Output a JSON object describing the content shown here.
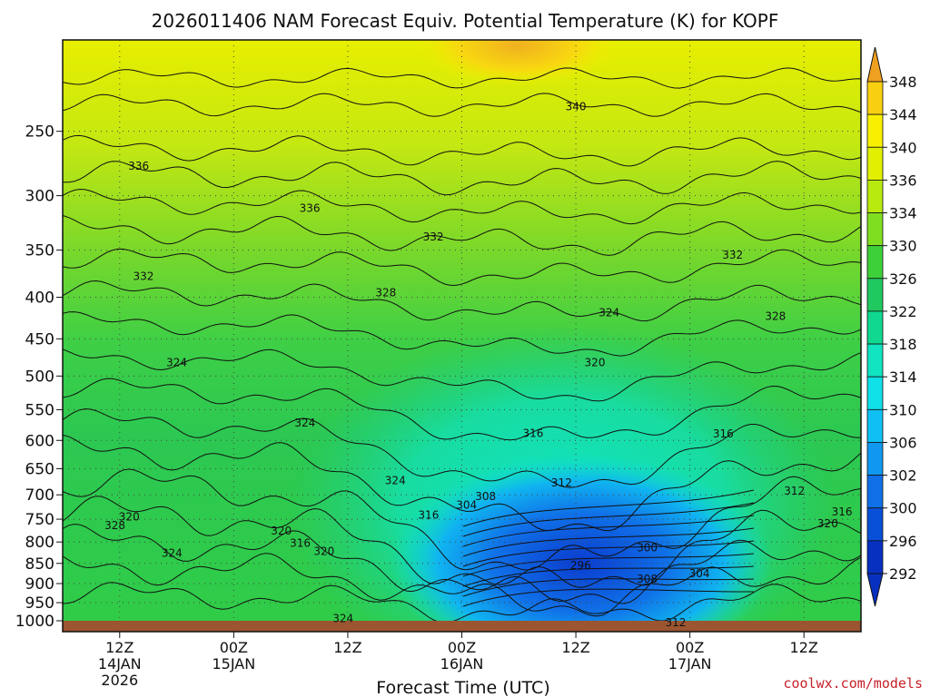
{
  "chart_data": {
    "type": "contour",
    "title": "2026011406 NAM Forecast Equiv. Potential Temperature (K) for KOPF",
    "xlabel": "Forecast Time (UTC)",
    "ylabel": "",
    "y_axis": "pressure (hPa), inverted",
    "ylim": [
      1000,
      200
    ],
    "pressure_levels": [
      250,
      300,
      350,
      400,
      450,
      500,
      550,
      600,
      650,
      700,
      750,
      800,
      850,
      900,
      950,
      1000
    ],
    "pressure_tick_labels": [
      "250",
      "300",
      "350",
      "400",
      "450",
      "500",
      "550",
      "600",
      "650",
      "700",
      "750",
      "800",
      "850",
      "900",
      "950",
      "1000"
    ],
    "time_ticks": [
      {
        "hour": 12,
        "line1": "12Z",
        "line2": "14JAN",
        "line3": "2026"
      },
      {
        "hour": 24,
        "line1": "00Z",
        "line2": "15JAN",
        "line3": ""
      },
      {
        "hour": 36,
        "line1": "12Z",
        "line2": "",
        "line3": ""
      },
      {
        "hour": 48,
        "line1": "00Z",
        "line2": "16JAN",
        "line3": ""
      },
      {
        "hour": 60,
        "line1": "12Z",
        "line2": "",
        "line3": ""
      },
      {
        "hour": 72,
        "line1": "00Z",
        "line2": "17JAN",
        "line3": ""
      },
      {
        "hour": 84,
        "line1": "12Z",
        "line2": "",
        "line3": ""
      }
    ],
    "xlim_hours": [
      6,
      90
    ],
    "colorbar": {
      "levels": [
        348,
        344,
        340,
        336,
        334,
        330,
        326,
        322,
        318,
        314,
        310,
        306,
        302,
        300,
        296,
        292
      ],
      "colors": [
        "#f0a020",
        "#f8d010",
        "#f8f000",
        "#e0f000",
        "#b8ea10",
        "#80de20",
        "#3ed038",
        "#20c860",
        "#10d890",
        "#10e4c0",
        "#10e0e8",
        "#10c0f4",
        "#1098f0",
        "#1070e8",
        "#0850d8",
        "#0830c0"
      ]
    },
    "contour_labels": [
      {
        "value": "340",
        "hour": 60.0,
        "p": 233
      },
      {
        "value": "336",
        "hour": 14.0,
        "p": 276
      },
      {
        "value": "336",
        "hour": 32.0,
        "p": 311
      },
      {
        "value": "332",
        "hour": 14.5,
        "p": 377
      },
      {
        "value": "332",
        "hour": 45.0,
        "p": 337
      },
      {
        "value": "332",
        "hour": 76.5,
        "p": 355
      },
      {
        "value": "328",
        "hour": 40.0,
        "p": 395
      },
      {
        "value": "328",
        "hour": 81.0,
        "p": 422
      },
      {
        "value": "328",
        "hour": 11.5,
        "p": 763
      },
      {
        "value": "324",
        "hour": 18.0,
        "p": 481
      },
      {
        "value": "324",
        "hour": 63.5,
        "p": 418
      },
      {
        "value": "324",
        "hour": 31.5,
        "p": 571
      },
      {
        "value": "324",
        "hour": 41.0,
        "p": 672
      },
      {
        "value": "324",
        "hour": 17.5,
        "p": 826
      },
      {
        "value": "324",
        "hour": 35.5,
        "p": 993
      },
      {
        "value": "320",
        "hour": 62.0,
        "p": 481
      },
      {
        "value": "320",
        "hour": 13.0,
        "p": 745
      },
      {
        "value": "320",
        "hour": 29.0,
        "p": 775
      },
      {
        "value": "320",
        "hour": 33.5,
        "p": 822
      },
      {
        "value": "320",
        "hour": 86.5,
        "p": 760
      },
      {
        "value": "316",
        "hour": 55.5,
        "p": 588
      },
      {
        "value": "316",
        "hour": 75.5,
        "p": 589
      },
      {
        "value": "316",
        "hour": 31.0,
        "p": 803
      },
      {
        "value": "316",
        "hour": 44.5,
        "p": 741
      },
      {
        "value": "316",
        "hour": 88.0,
        "p": 735
      },
      {
        "value": "312",
        "hour": 58.5,
        "p": 677
      },
      {
        "value": "312",
        "hour": 83.0,
        "p": 692
      },
      {
        "value": "312",
        "hour": 70.5,
        "p": 1005
      },
      {
        "value": "308",
        "hour": 50.5,
        "p": 703
      },
      {
        "value": "308",
        "hour": 67.5,
        "p": 888
      },
      {
        "value": "304",
        "hour": 48.5,
        "p": 721
      },
      {
        "value": "304",
        "hour": 73.0,
        "p": 875
      },
      {
        "value": "300",
        "hour": 67.5,
        "p": 813
      },
      {
        "value": "296",
        "hour": 60.5,
        "p": 855
      }
    ]
  },
  "credit": "coolwx.com/models"
}
